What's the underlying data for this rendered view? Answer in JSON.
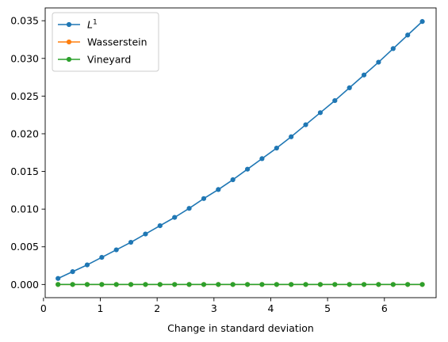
{
  "chart_data": {
    "type": "line",
    "xlabel": "Change in standard deviation",
    "ylabel": "",
    "title": "",
    "xlim": [
      0.03,
      6.91
    ],
    "ylim": [
      -0.00175,
      0.0367
    ],
    "x_ticks": [
      0,
      1,
      2,
      3,
      4,
      5,
      6
    ],
    "x_tick_labels": [
      "0",
      "1",
      "2",
      "3",
      "4",
      "5",
      "6"
    ],
    "y_ticks": [
      0.0,
      0.005,
      0.01,
      0.015,
      0.02,
      0.025,
      0.03,
      0.035
    ],
    "y_tick_labels": [
      "0.000",
      "0.005",
      "0.010",
      "0.015",
      "0.020",
      "0.025",
      "0.030",
      "0.035"
    ],
    "grid": false,
    "legend_position": "upper-left",
    "x": [
      0.256,
      0.513,
      0.769,
      1.026,
      1.282,
      1.538,
      1.795,
      2.051,
      2.308,
      2.564,
      2.821,
      3.077,
      3.333,
      3.59,
      3.846,
      4.103,
      4.359,
      4.615,
      4.872,
      5.128,
      5.385,
      5.641,
      5.897,
      6.154,
      6.41,
      6.667
    ],
    "series": [
      {
        "name": "L",
        "name_superscript": "1",
        "color": "#1f77b4",
        "values": [
          0.0008,
          0.0017,
          0.0026,
          0.0036,
          0.0046,
          0.0056,
          0.0067,
          0.0078,
          0.0089,
          0.0101,
          0.0114,
          0.0126,
          0.0139,
          0.0153,
          0.0167,
          0.0181,
          0.0196,
          0.0212,
          0.0228,
          0.0244,
          0.0261,
          0.0278,
          0.0295,
          0.0313,
          0.0331,
          0.0349
        ]
      },
      {
        "name": "Wasserstein",
        "color": "#ff7f0e",
        "values": [
          0,
          0,
          0,
          0,
          0,
          0,
          0,
          0,
          0,
          0,
          0,
          0,
          0,
          0,
          0,
          0,
          0,
          0,
          0,
          0,
          0,
          0,
          0,
          0,
          0,
          0
        ]
      },
      {
        "name": "Vineyard",
        "color": "#2ca02c",
        "values": [
          0,
          0,
          0,
          0,
          0,
          0,
          0,
          0,
          0,
          0,
          0,
          0,
          0,
          0,
          0,
          0,
          0,
          0,
          0,
          0,
          0,
          0,
          0,
          0,
          0,
          0
        ]
      }
    ]
  }
}
